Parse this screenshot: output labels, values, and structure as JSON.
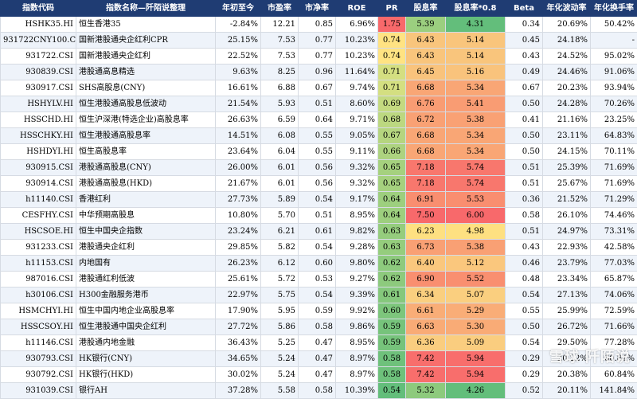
{
  "headers": [
    "指数代码",
    "指数名称—阡陌说整理",
    "年初至今",
    "市盈率",
    "市净率",
    "ROE",
    "PR",
    "股息率",
    "股息率*0.8",
    "Beta",
    "年化波动率",
    "年化换手率"
  ],
  "rows": [
    {
      "code": "HSHK35.HI",
      "name": "恒生香港35",
      "ytd": "-2.84%",
      "pe": "12.21",
      "pb": "0.85",
      "roe": "6.96%",
      "pr": "1.75",
      "dy": "5.39",
      "dy8": "4.31",
      "beta": "0.34",
      "vol": "20.69%",
      "turn": "50.42%",
      "pr_color": "#f8696b",
      "dy_color": "#9bcf7f",
      "dy8_color": "#63be7b"
    },
    {
      "code": "931722CNY100.CSI",
      "name": "国新港股通央企红利CPR",
      "ytd": "25.15%",
      "pe": "7.53",
      "pb": "0.77",
      "roe": "10.23%",
      "pr": "0.74",
      "dy": "6.43",
      "dy8": "5.14",
      "beta": "0.45",
      "vol": "24.18%",
      "turn": "-",
      "pr_color": "#ffe382",
      "dy_color": "#f9c57c",
      "dy8_color": "#f9c57c"
    },
    {
      "code": "931722.CSI",
      "name": "国新港股通央企红利",
      "ytd": "22.52%",
      "pe": "7.53",
      "pb": "0.77",
      "roe": "10.23%",
      "pr": "0.74",
      "dy": "6.43",
      "dy8": "5.14",
      "beta": "0.43",
      "vol": "24.52%",
      "turn": "95.02%",
      "pr_color": "#ffe382",
      "dy_color": "#f9c57c",
      "dy8_color": "#f9c57c"
    },
    {
      "code": "930839.CSI",
      "name": "港股通高息精选",
      "ytd": "9.63%",
      "pe": "8.25",
      "pb": "0.96",
      "roe": "11.64%",
      "pr": "0.71",
      "dy": "6.45",
      "dy8": "5.16",
      "beta": "0.49",
      "vol": "24.46%",
      "turn": "91.06%",
      "pr_color": "#d4df81",
      "dy_color": "#f9c37c",
      "dy8_color": "#f9c37c"
    },
    {
      "code": "930917.CSI",
      "name": "SHS高股息(CNY)",
      "ytd": "16.61%",
      "pe": "6.88",
      "pb": "0.67",
      "roe": "9.74%",
      "pr": "0.71",
      "dy": "6.68",
      "dy8": "5.34",
      "beta": "0.67",
      "vol": "20.23%",
      "turn": "93.94%",
      "pr_color": "#d4df81",
      "dy_color": "#f9a675",
      "dy8_color": "#f9a675"
    },
    {
      "code": "HSHYLV.HI",
      "name": "恒生港股通高股息低波动",
      "ytd": "21.54%",
      "pe": "5.93",
      "pb": "0.51",
      "roe": "8.60%",
      "pr": "0.69",
      "dy": "6.76",
      "dy8": "5.41",
      "beta": "0.50",
      "vol": "24.28%",
      "turn": "70.26%",
      "pr_color": "#c4da80",
      "dy_color": "#f99c73",
      "dy8_color": "#f99c73"
    },
    {
      "code": "HSSCHD.HI",
      "name": "恒生沪深港(特选企业)高股息率",
      "ytd": "26.63%",
      "pe": "6.59",
      "pb": "0.64",
      "roe": "9.71%",
      "pr": "0.68",
      "dy": "6.72",
      "dy8": "5.38",
      "beta": "0.41",
      "vol": "21.16%",
      "turn": "23.25%",
      "pr_color": "#bcd880",
      "dy_color": "#f9a174",
      "dy8_color": "#f9a174"
    },
    {
      "code": "HSSCHKY.HI",
      "name": "恒生港股通高股息率",
      "ytd": "14.51%",
      "pe": "6.08",
      "pb": "0.55",
      "roe": "9.05%",
      "pr": "0.67",
      "dy": "6.68",
      "dy8": "5.34",
      "beta": "0.50",
      "vol": "23.11%",
      "turn": "64.83%",
      "pr_color": "#b5d57f",
      "dy_color": "#f9a675",
      "dy8_color": "#f9a675"
    },
    {
      "code": "HSHDYI.HI",
      "name": "恒生高股息率",
      "ytd": "23.64%",
      "pe": "6.04",
      "pb": "0.55",
      "roe": "9.11%",
      "pr": "0.66",
      "dy": "6.68",
      "dy8": "5.34",
      "beta": "0.50",
      "vol": "24.15%",
      "turn": "70.11%",
      "pr_color": "#add37f",
      "dy_color": "#f9a675",
      "dy8_color": "#f9a675"
    },
    {
      "code": "930915.CSI",
      "name": "港股通高股息(CNY)",
      "ytd": "26.00%",
      "pe": "6.01",
      "pb": "0.56",
      "roe": "9.32%",
      "pr": "0.65",
      "dy": "7.18",
      "dy8": "5.74",
      "beta": "0.51",
      "vol": "25.39%",
      "turn": "71.69%",
      "pr_color": "#a5d17e",
      "dy_color": "#f8776d",
      "dy8_color": "#f8776d"
    },
    {
      "code": "930914.CSI",
      "name": "港股通高股息(HKD)",
      "ytd": "21.67%",
      "pe": "6.01",
      "pb": "0.56",
      "roe": "9.32%",
      "pr": "0.65",
      "dy": "7.18",
      "dy8": "5.74",
      "beta": "0.51",
      "vol": "25.67%",
      "turn": "71.69%",
      "pr_color": "#a5d17e",
      "dy_color": "#f8776d",
      "dy8_color": "#f8776d"
    },
    {
      "code": "h11140.CSI",
      "name": "香港红利",
      "ytd": "27.73%",
      "pe": "5.89",
      "pb": "0.54",
      "roe": "9.17%",
      "pr": "0.64",
      "dy": "6.91",
      "dy8": "5.53",
      "beta": "0.36",
      "vol": "21.52%",
      "turn": "71.29%",
      "pr_color": "#9dcf7e",
      "dy_color": "#f98e70",
      "dy8_color": "#f98e70"
    },
    {
      "code": "CESFHY.CSI",
      "name": "中华预期高股息",
      "ytd": "10.80%",
      "pe": "5.70",
      "pb": "0.51",
      "roe": "8.95%",
      "pr": "0.64",
      "dy": "7.50",
      "dy8": "6.00",
      "beta": "0.58",
      "vol": "26.10%",
      "turn": "74.46%",
      "pr_color": "#9dcf7e",
      "dy_color": "#f8696b",
      "dy8_color": "#f8696b"
    },
    {
      "code": "HSCSOE.HI",
      "name": "恒生中国央企指数",
      "ytd": "23.24%",
      "pe": "6.21",
      "pb": "0.61",
      "roe": "9.82%",
      "pr": "0.63",
      "dy": "6.23",
      "dy8": "4.98",
      "beta": "0.51",
      "vol": "24.97%",
      "turn": "73.31%",
      "pr_color": "#95cd7d",
      "dy_color": "#fee081",
      "dy8_color": "#fee081"
    },
    {
      "code": "931233.CSI",
      "name": "港股通央企红利",
      "ytd": "29.85%",
      "pe": "5.82",
      "pb": "0.54",
      "roe": "9.28%",
      "pr": "0.63",
      "dy": "6.73",
      "dy8": "5.38",
      "beta": "0.43",
      "vol": "22.93%",
      "turn": "42.58%",
      "pr_color": "#95cd7d",
      "dy_color": "#f9a074",
      "dy8_color": "#f9a074"
    },
    {
      "code": "h11153.CSI",
      "name": "内地国有",
      "ytd": "26.23%",
      "pe": "6.12",
      "pb": "0.60",
      "roe": "9.80%",
      "pr": "0.62",
      "dy": "6.40",
      "dy8": "5.12",
      "beta": "0.46",
      "vol": "23.79%",
      "turn": "77.03%",
      "pr_color": "#8dca7d",
      "dy_color": "#fac77d",
      "dy8_color": "#fac77d"
    },
    {
      "code": "987016.CSI",
      "name": "港股通红利低波",
      "ytd": "25.61%",
      "pe": "5.72",
      "pb": "0.53",
      "roe": "9.27%",
      "pr": "0.62",
      "dy": "6.90",
      "dy8": "5.52",
      "beta": "0.48",
      "vol": "23.34%",
      "turn": "65.87%",
      "pr_color": "#8dca7d",
      "dy_color": "#f98f70",
      "dy8_color": "#f98f70"
    },
    {
      "code": "h30106.CSI",
      "name": "H300金融服务港币",
      "ytd": "22.97%",
      "pe": "5.75",
      "pb": "0.54",
      "roe": "9.39%",
      "pr": "0.61",
      "dy": "6.34",
      "dy8": "5.07",
      "beta": "0.54",
      "vol": "27.13%",
      "turn": "74.06%",
      "pr_color": "#85c87c",
      "dy_color": "#facf7f",
      "dy8_color": "#facf7f"
    },
    {
      "code": "HSMCHYI.HI",
      "name": "恒生中国内地企业高股息率",
      "ytd": "17.90%",
      "pe": "5.95",
      "pb": "0.59",
      "roe": "9.92%",
      "pr": "0.60",
      "dy": "6.61",
      "dy8": "5.29",
      "beta": "0.55",
      "vol": "25.99%",
      "turn": "72.59%",
      "pr_color": "#7dc67c",
      "dy_color": "#f9ad77",
      "dy8_color": "#f9ad77"
    },
    {
      "code": "HSSCSOY.HI",
      "name": "恒生港股通中国央企红利",
      "ytd": "27.72%",
      "pe": "5.86",
      "pb": "0.58",
      "roe": "9.86%",
      "pr": "0.59",
      "dy": "6.63",
      "dy8": "5.30",
      "beta": "0.50",
      "vol": "26.72%",
      "turn": "71.66%",
      "pr_color": "#76c37b",
      "dy_color": "#f9ab76",
      "dy8_color": "#f9ab76"
    },
    {
      "code": "h11146.CSI",
      "name": "港股通内地金融",
      "ytd": "36.43%",
      "pe": "5.25",
      "pb": "0.47",
      "roe": "8.95%",
      "pr": "0.59",
      "dy": "6.36",
      "dy8": "5.09",
      "beta": "0.54",
      "vol": "29.50%",
      "turn": "77.28%",
      "pr_color": "#76c37b",
      "dy_color": "#facd7f",
      "dy8_color": "#facd7f"
    },
    {
      "code": "930793.CSI",
      "name": "HK银行(CNY)",
      "ytd": "34.65%",
      "pe": "5.24",
      "pb": "0.47",
      "roe": "8.97%",
      "pr": "0.58",
      "dy": "7.42",
      "dy8": "5.94",
      "beta": "0.29",
      "vol": "20.22%",
      "turn": "60.84%",
      "pr_color": "#6ec17b",
      "dy_color": "#f86e6c",
      "dy8_color": "#f86e6c"
    },
    {
      "code": "930792.CSI",
      "name": "HK银行(HKD)",
      "ytd": "30.02%",
      "pe": "5.24",
      "pb": "0.47",
      "roe": "8.97%",
      "pr": "0.58",
      "dy": "7.42",
      "dy8": "5.94",
      "beta": "0.29",
      "vol": "20.38%",
      "turn": "60.84%",
      "pr_color": "#6ec17b",
      "dy_color": "#f86e6c",
      "dy8_color": "#f86e6c"
    },
    {
      "code": "931039.CSI",
      "name": "银行AH",
      "ytd": "37.28%",
      "pe": "5.58",
      "pb": "0.58",
      "roe": "10.39%",
      "pr": "0.54",
      "dy": "5.32",
      "dy8": "4.26",
      "beta": "0.52",
      "vol": "20.11%",
      "turn": "141.84%",
      "pr_color": "#63be7b",
      "dy_color": "#8dca7d",
      "dy8_color": "#63be7b"
    }
  ],
  "watermark": "雪球 阡陌说"
}
